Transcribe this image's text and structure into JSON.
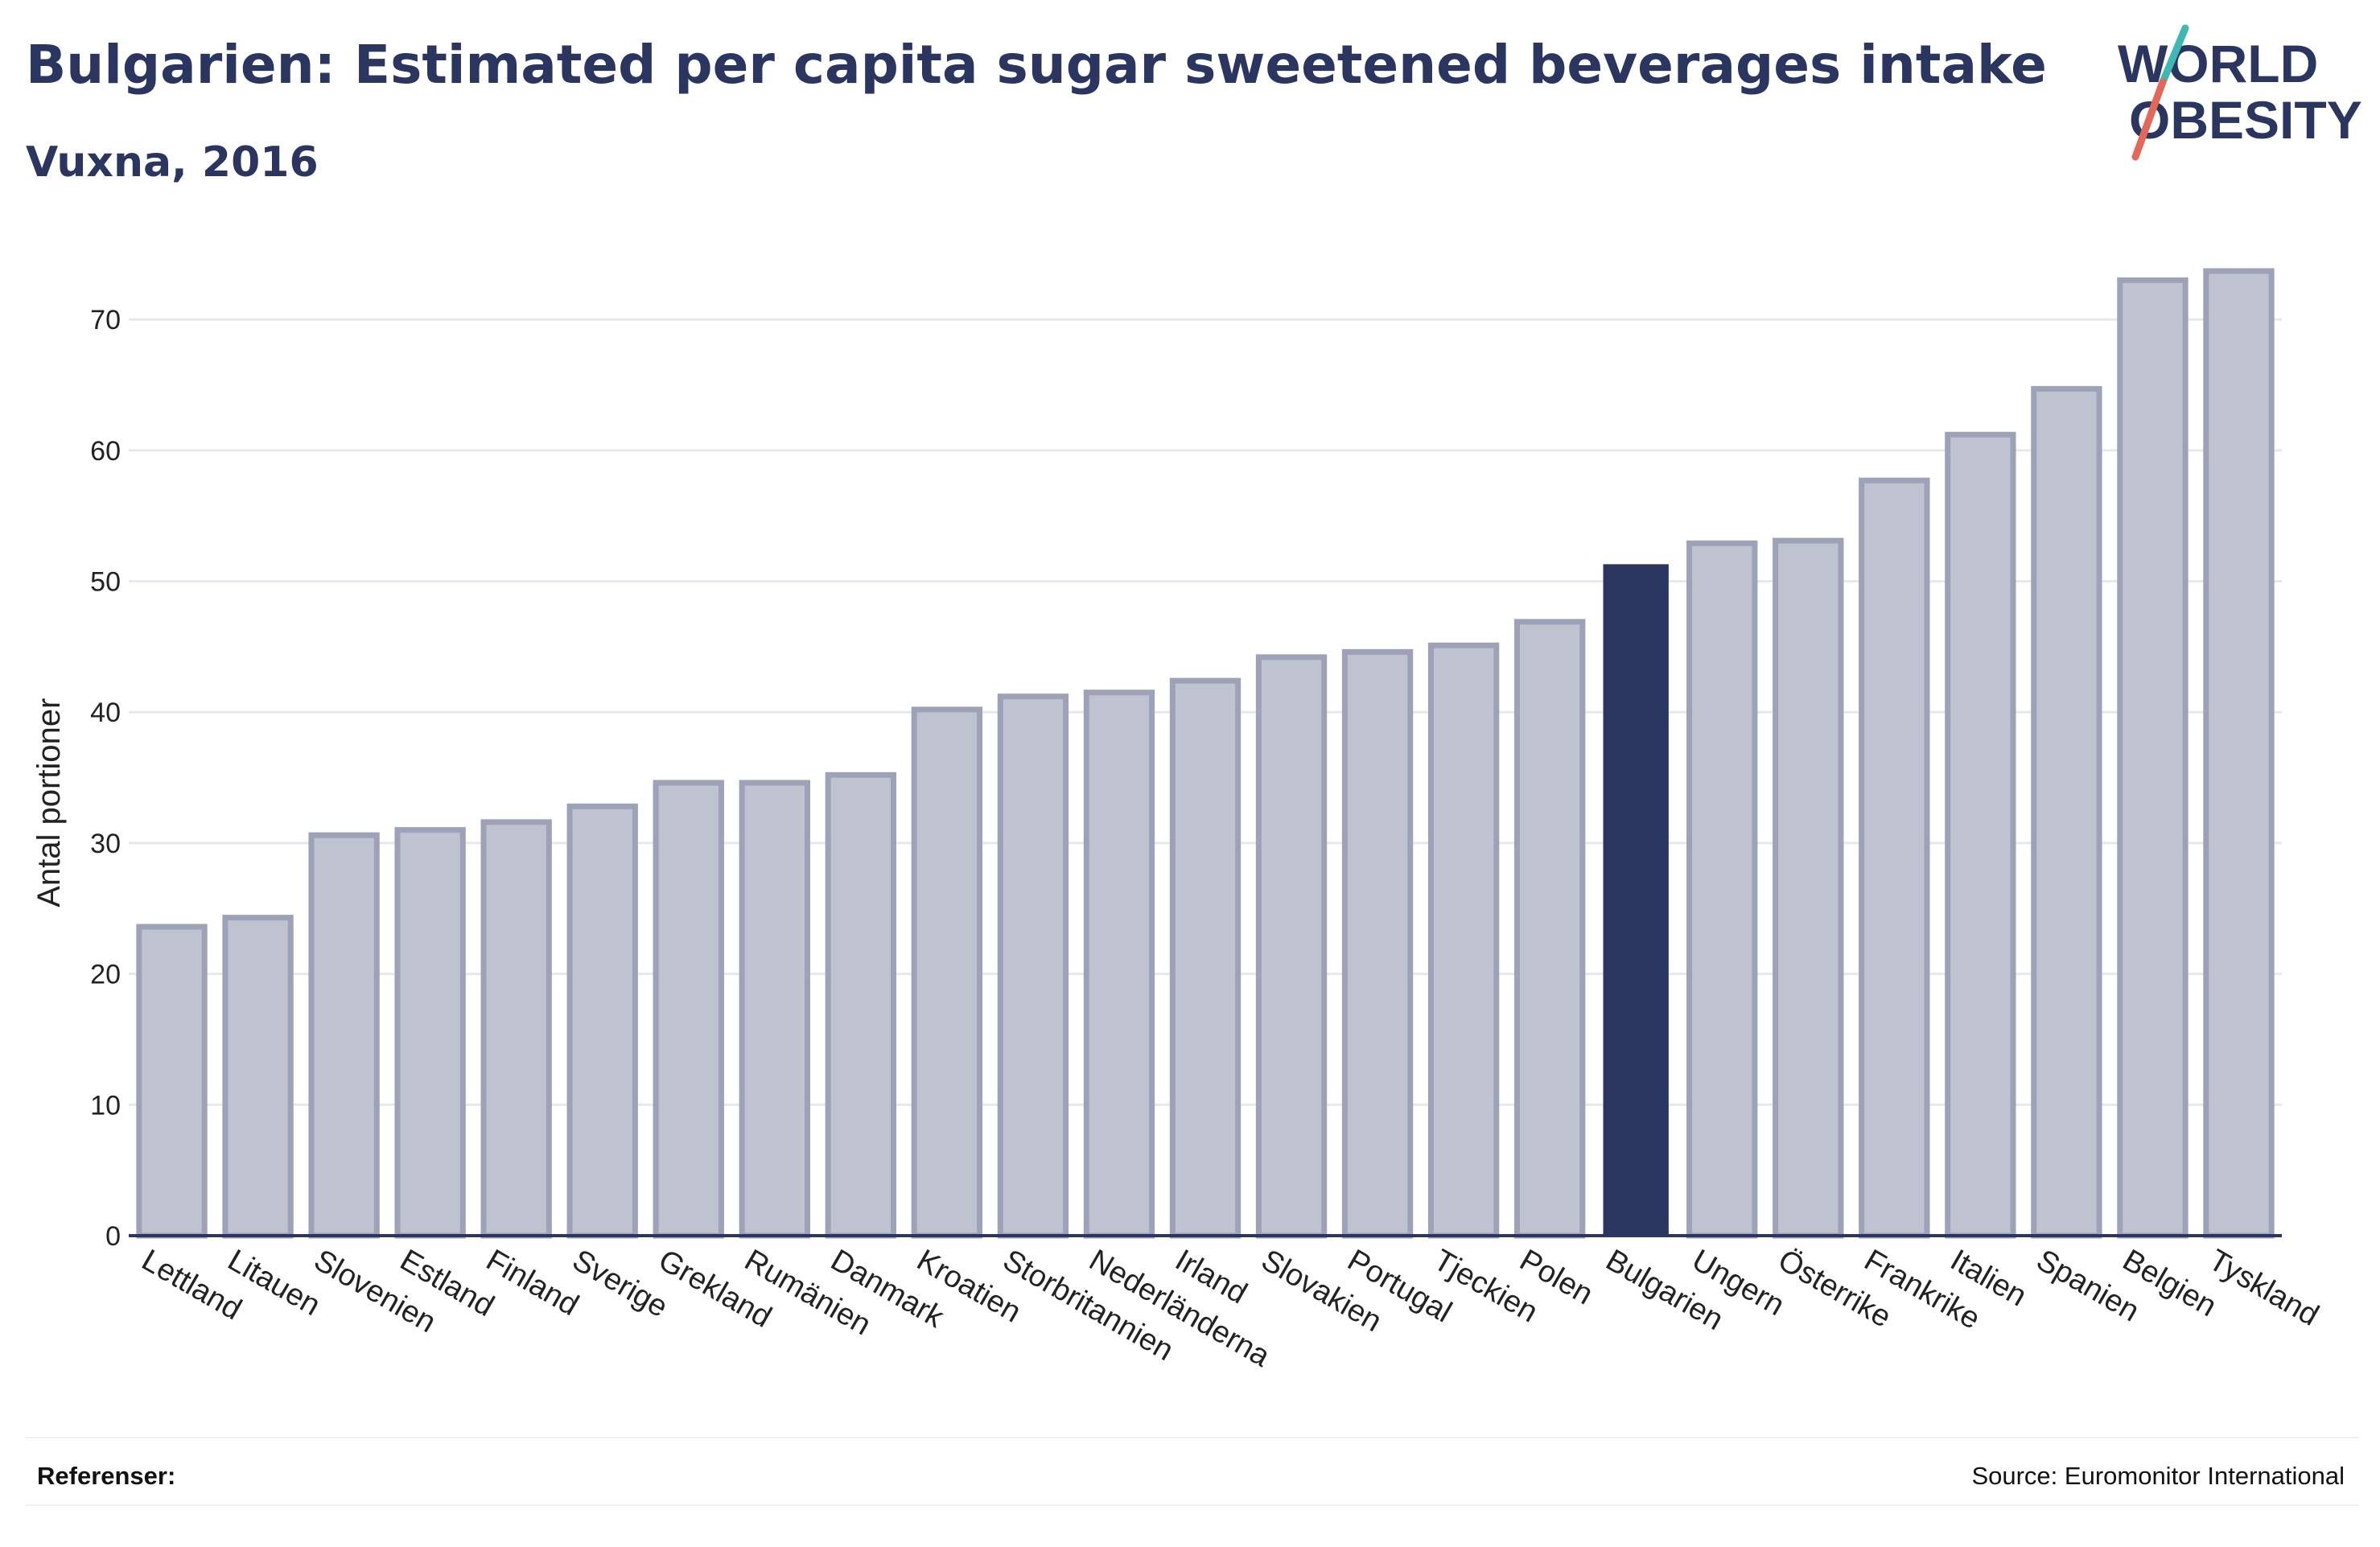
{
  "header": {
    "title": "Bulgarien: Estimated per capita sugar sweetened beverages intake",
    "subtitle": "Vuxna, 2016"
  },
  "logo": {
    "line1": "WORLD",
    "line2": "OBESITY",
    "text_color": "#2a3560",
    "slash_color_top": "#3fb8b3",
    "slash_color_bottom": "#e2685a"
  },
  "footer": {
    "references_label": "Referenser:",
    "source": "Source: Euromonitor International"
  },
  "colors": {
    "bar_fill": "#bfc2cf",
    "bar_stroke": "#9da2b8",
    "highlight": "#2a3560",
    "grid": "#e6e8ee",
    "axis": "#2a3560"
  },
  "chart_data": {
    "type": "bar",
    "title": "Bulgarien: Estimated per capita sugar sweetened beverages intake",
    "subtitle": "Vuxna, 2016",
    "xlabel": "",
    "ylabel": "Antal portioner",
    "ylim": [
      0,
      76
    ],
    "yticks": [
      0,
      10,
      20,
      30,
      40,
      50,
      60,
      70
    ],
    "grid": true,
    "highlight": "Bulgarien",
    "categories": [
      "Lettland",
      "Litauen",
      "Slovenien",
      "Estland",
      "Finland",
      "Sverige",
      "Grekland",
      "Rumänien",
      "Danmark",
      "Kroatien",
      "Storbritannien",
      "Nederländerna",
      "Irland",
      "Slovakien",
      "Portugal",
      "Tjeckien",
      "Polen",
      "Bulgarien",
      "Ungern",
      "Österrike",
      "Frankrike",
      "Italien",
      "Spanien",
      "Belgien",
      "Tyskland"
    ],
    "values": [
      23.6,
      24.3,
      30.6,
      31.0,
      31.6,
      32.8,
      34.6,
      34.6,
      35.2,
      40.2,
      41.2,
      41.5,
      42.4,
      44.2,
      44.6,
      45.1,
      46.9,
      51.3,
      52.9,
      53.1,
      57.7,
      61.2,
      64.7,
      73.0,
      73.7
    ]
  }
}
